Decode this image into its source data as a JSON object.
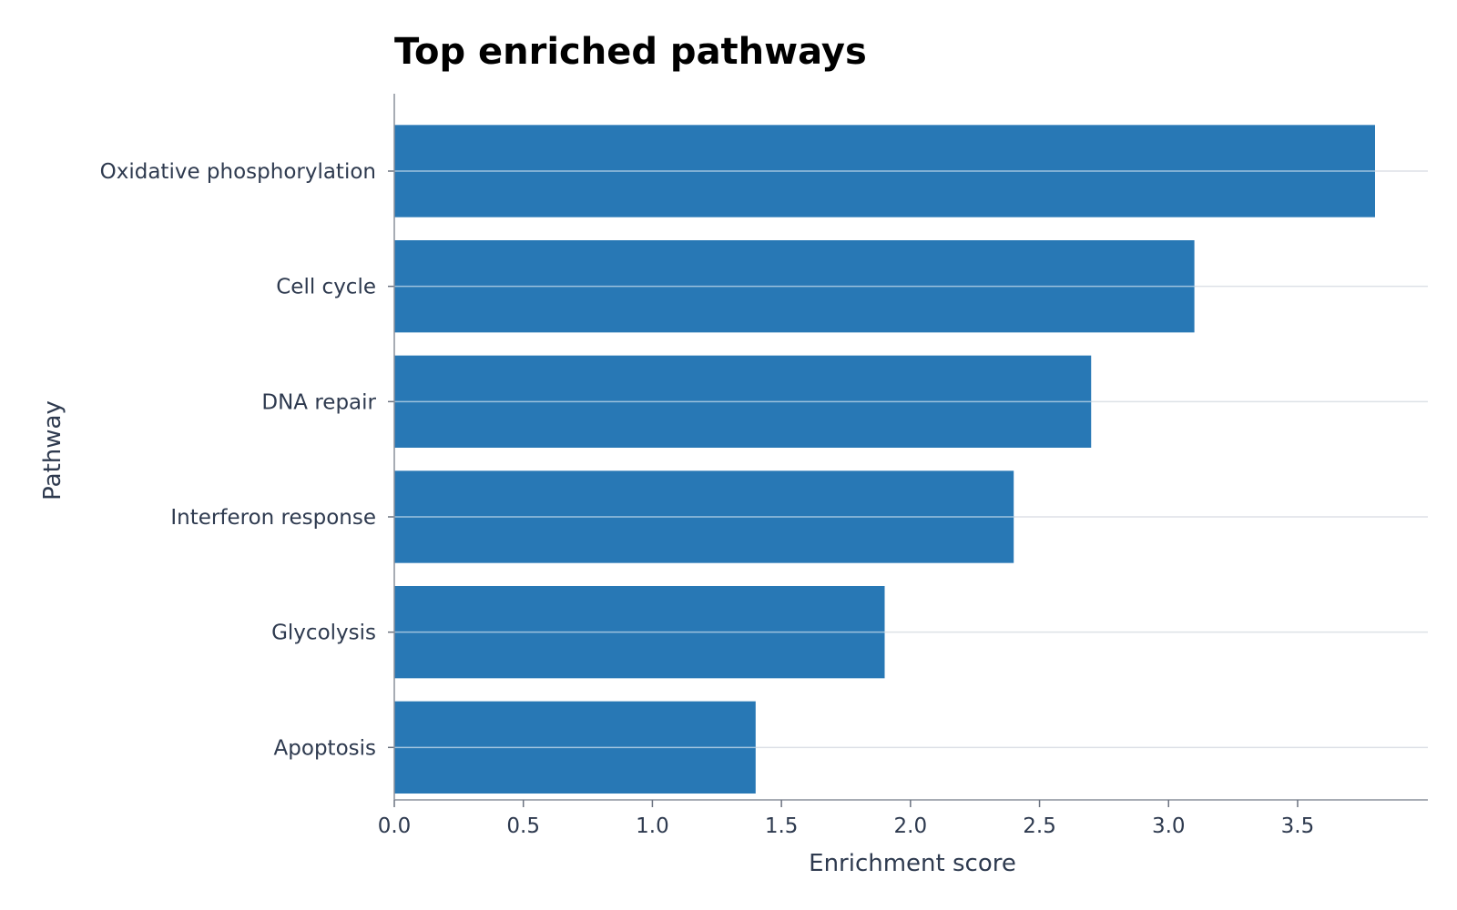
{
  "chart_data": {
    "type": "bar",
    "orientation": "horizontal",
    "title": "Top enriched pathways",
    "xlabel": "Enrichment score",
    "ylabel": "Pathway",
    "categories": [
      "Oxidative phosphorylation",
      "Cell cycle",
      "DNA repair",
      "Interferon response",
      "Glycolysis",
      "Apoptosis"
    ],
    "values": [
      3.8,
      3.1,
      2.7,
      2.4,
      1.9,
      1.4
    ],
    "xlim": [
      0,
      4.0
    ],
    "xticks": [
      "0.0",
      "0.5",
      "1.0",
      "1.5",
      "2.0",
      "2.5",
      "3.0",
      "3.5"
    ],
    "grid": "horizontal lines at category positions",
    "bar_color": "#2878b5"
  }
}
